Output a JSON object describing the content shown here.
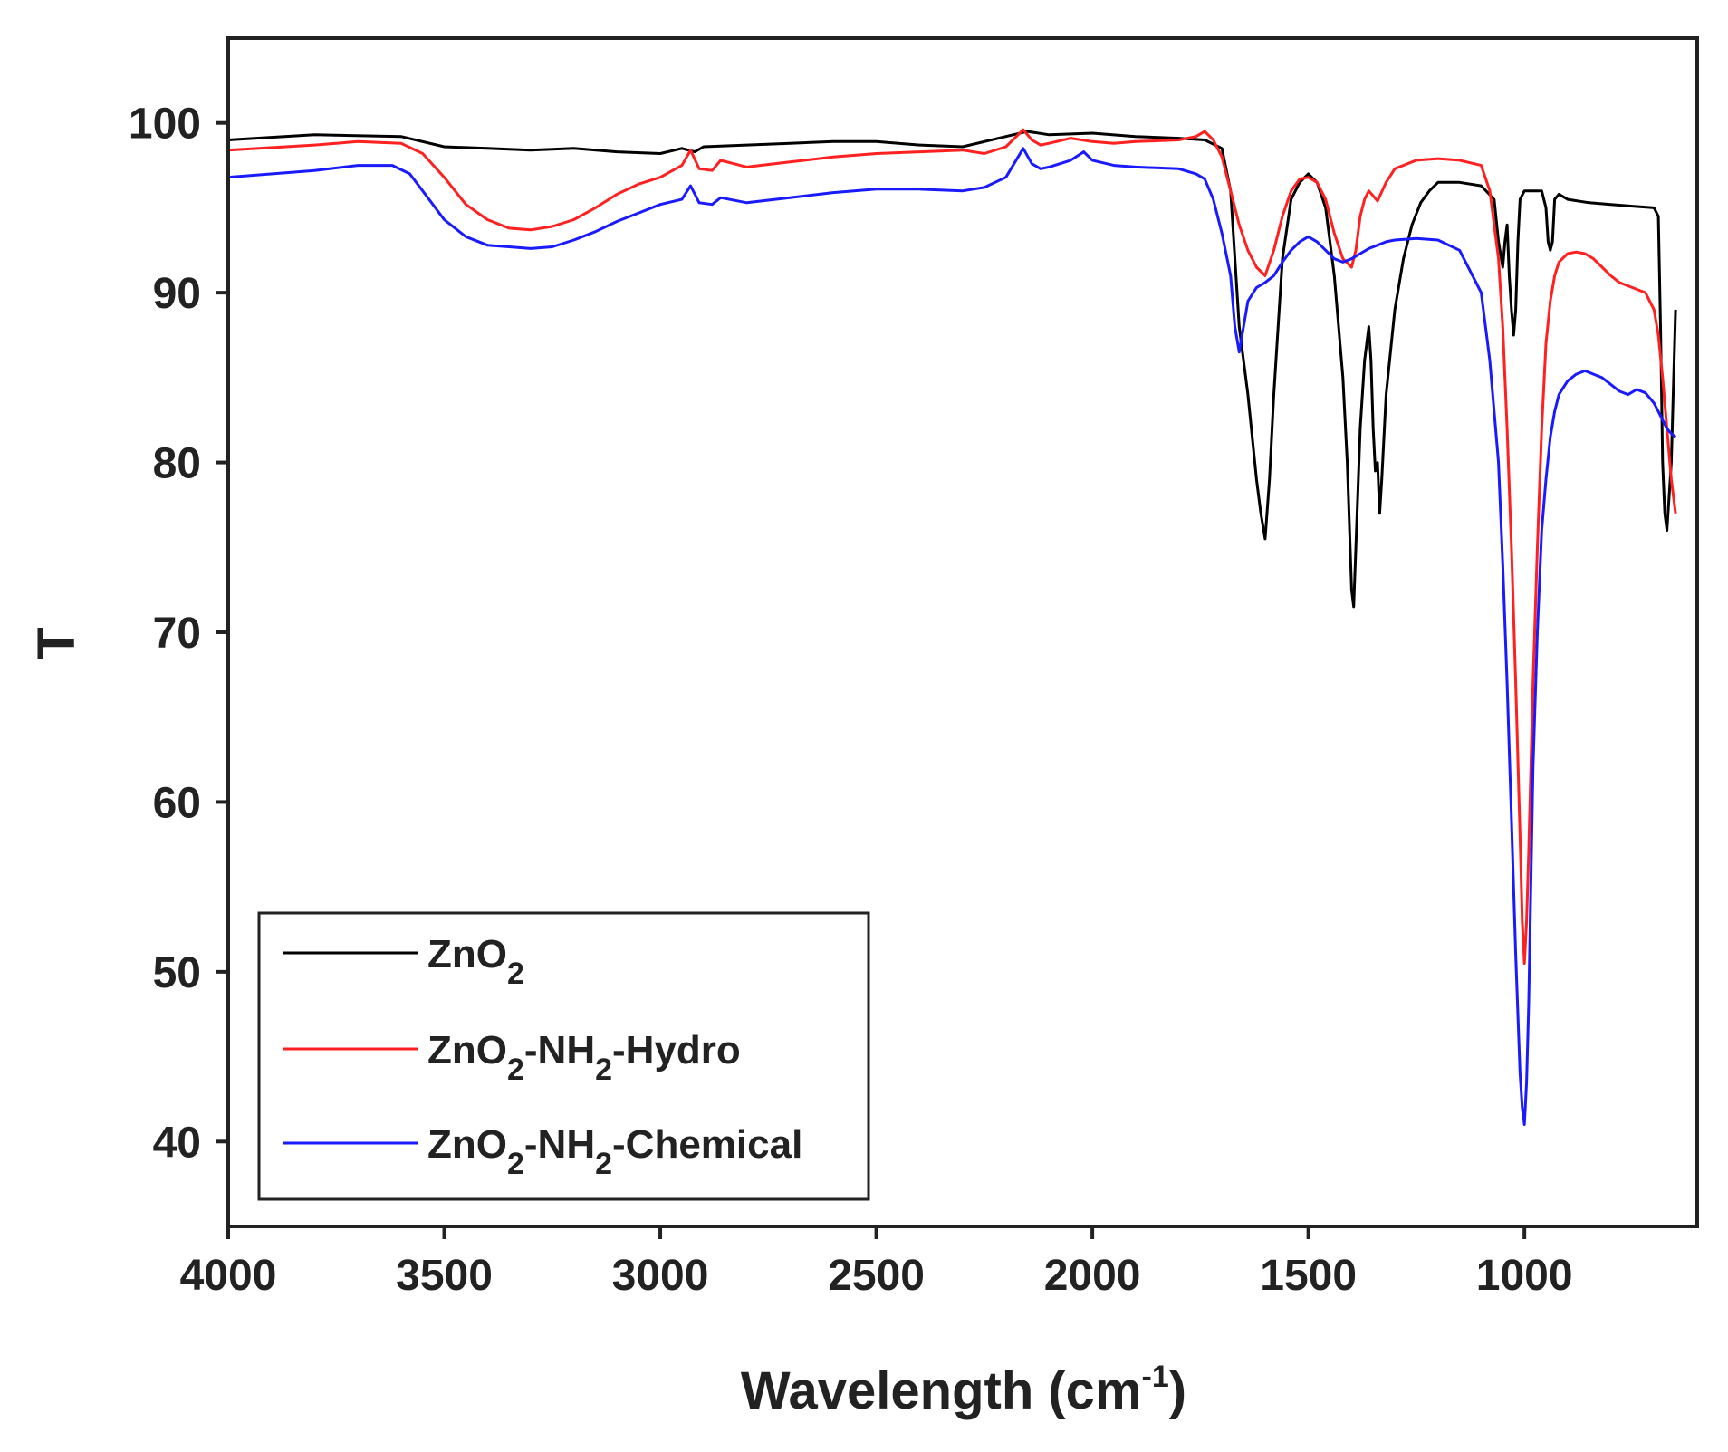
{
  "chart_data": {
    "type": "line",
    "title": "",
    "xlabel_main": "Wavelength (cm",
    "xlabel_sup": "-1",
    "xlabel_close": ")",
    "ylabel": "T",
    "xlim": [
      4000,
      600
    ],
    "ylim": [
      35,
      105
    ],
    "xticks": [
      4000,
      3500,
      3000,
      2500,
      2000,
      1500,
      1000
    ],
    "xtick_labels": [
      "4000",
      "3500",
      "3000",
      "2500",
      "2000",
      "1500",
      "1000"
    ],
    "yticks": [
      40,
      50,
      60,
      70,
      80,
      90,
      100
    ],
    "ytick_labels": [
      "40",
      "50",
      "60",
      "70",
      "80",
      "90",
      "100"
    ],
    "grid": false,
    "legend_position": "bottom-left",
    "series": [
      {
        "name": "ZnO2",
        "legend": {
          "base": "ZnO",
          "sub": "2",
          "tail": "",
          "sub2": "",
          "tail2": ""
        },
        "color": "#000000",
        "x": [
          4000,
          3800,
          3600,
          3500,
          3400,
          3300,
          3200,
          3100,
          3000,
          2950,
          2920,
          2900,
          2800,
          2700,
          2600,
          2500,
          2400,
          2300,
          2200,
          2150,
          2100,
          2000,
          1900,
          1800,
          1740,
          1700,
          1680,
          1660,
          1640,
          1620,
          1610,
          1600,
          1590,
          1580,
          1560,
          1540,
          1520,
          1500,
          1480,
          1460,
          1440,
          1420,
          1410,
          1400,
          1395,
          1390,
          1380,
          1370,
          1360,
          1355,
          1350,
          1345,
          1340,
          1335,
          1330,
          1320,
          1300,
          1280,
          1260,
          1240,
          1220,
          1200,
          1150,
          1100,
          1070,
          1060,
          1050,
          1045,
          1040,
          1035,
          1030,
          1025,
          1020,
          1015,
          1010,
          1000,
          980,
          960,
          950,
          945,
          940,
          935,
          930,
          920,
          900,
          850,
          800,
          750,
          700,
          690,
          685,
          680,
          675,
          670,
          660,
          650
        ],
        "y": [
          99,
          99.3,
          99.2,
          98.6,
          98.5,
          98.4,
          98.5,
          98.3,
          98.2,
          98.5,
          98.3,
          98.6,
          98.7,
          98.8,
          98.9,
          98.9,
          98.7,
          98.6,
          99.2,
          99.5,
          99.3,
          99.4,
          99.2,
          99.1,
          99.0,
          98.5,
          96,
          88,
          84,
          79,
          77,
          75.5,
          79,
          84,
          92,
          95.5,
          96.5,
          97,
          96.5,
          95,
          91,
          85,
          80,
          72.5,
          71.5,
          75,
          82,
          86,
          88,
          86,
          82,
          79.5,
          80,
          77,
          79,
          84,
          89,
          92,
          94,
          95.3,
          96,
          96.5,
          96.5,
          96.3,
          95.5,
          93,
          91.5,
          93,
          94,
          91,
          89,
          87.5,
          89,
          93,
          95.5,
          96,
          96,
          96,
          95,
          93,
          92.5,
          93,
          95.5,
          95.8,
          95.5,
          95.3,
          95.2,
          95.1,
          95,
          94.5,
          88,
          80,
          77,
          76,
          80,
          89
        ]
      },
      {
        "name": "ZnO2-NH2-Hydro",
        "legend": {
          "base": "ZnO",
          "sub": "2",
          "tail": "-NH",
          "sub2": "2",
          "tail2": "-Hydro"
        },
        "color": "#ff2020",
        "x": [
          4000,
          3800,
          3700,
          3600,
          3550,
          3500,
          3450,
          3400,
          3350,
          3300,
          3250,
          3200,
          3150,
          3100,
          3050,
          3000,
          2950,
          2930,
          2910,
          2880,
          2860,
          2800,
          2700,
          2600,
          2500,
          2400,
          2300,
          2250,
          2200,
          2160,
          2140,
          2120,
          2100,
          2050,
          2000,
          1950,
          1900,
          1800,
          1760,
          1740,
          1720,
          1700,
          1680,
          1660,
          1640,
          1620,
          1600,
          1580,
          1560,
          1540,
          1520,
          1500,
          1480,
          1460,
          1440,
          1420,
          1400,
          1390,
          1380,
          1370,
          1360,
          1350,
          1340,
          1320,
          1300,
          1250,
          1200,
          1150,
          1100,
          1080,
          1060,
          1050,
          1040,
          1030,
          1020,
          1010,
          1005,
          1000,
          995,
          990,
          985,
          980,
          970,
          960,
          950,
          940,
          930,
          920,
          900,
          880,
          860,
          840,
          820,
          800,
          780,
          760,
          740,
          720,
          700,
          690,
          680,
          670,
          660,
          650
        ],
        "y": [
          98.4,
          98.7,
          98.9,
          98.8,
          98.2,
          96.8,
          95.2,
          94.3,
          93.8,
          93.7,
          93.9,
          94.3,
          95,
          95.8,
          96.4,
          96.8,
          97.5,
          98.4,
          97.3,
          97.2,
          97.8,
          97.4,
          97.7,
          98,
          98.2,
          98.3,
          98.4,
          98.2,
          98.6,
          99.6,
          99,
          98.7,
          98.8,
          99.1,
          98.9,
          98.8,
          98.9,
          99,
          99.2,
          99.5,
          99,
          98,
          96,
          94,
          92.5,
          91.5,
          91,
          92.5,
          94.5,
          96,
          96.7,
          96.8,
          96.5,
          95.5,
          93.5,
          92,
          91.5,
          92.5,
          94.5,
          95.5,
          96,
          95.7,
          95.4,
          96.5,
          97.3,
          97.8,
          97.9,
          97.8,
          97.5,
          96,
          92,
          88,
          82,
          75,
          67,
          58,
          53,
          50.5,
          53,
          57,
          62,
          67,
          75,
          82,
          87,
          89.5,
          91,
          91.8,
          92.3,
          92.4,
          92.3,
          92,
          91.5,
          91,
          90.6,
          90.4,
          90.2,
          90,
          89,
          87.5,
          85,
          82,
          79,
          77
        ]
      },
      {
        "name": "ZnO2-NH2-Chemical",
        "legend": {
          "base": "ZnO",
          "sub": "2",
          "tail": "-NH",
          "sub2": "2",
          "tail2": "-Chemical"
        },
        "color": "#1a1aff",
        "x": [
          4000,
          3800,
          3700,
          3620,
          3580,
          3550,
          3500,
          3450,
          3400,
          3350,
          3300,
          3250,
          3200,
          3150,
          3100,
          3050,
          3000,
          2950,
          2930,
          2910,
          2880,
          2860,
          2800,
          2700,
          2600,
          2500,
          2400,
          2300,
          2250,
          2200,
          2160,
          2140,
          2120,
          2100,
          2050,
          2020,
          2000,
          1950,
          1900,
          1800,
          1760,
          1740,
          1720,
          1700,
          1680,
          1670,
          1660,
          1650,
          1640,
          1620,
          1600,
          1580,
          1560,
          1540,
          1520,
          1500,
          1480,
          1460,
          1440,
          1420,
          1400,
          1380,
          1360,
          1340,
          1320,
          1300,
          1250,
          1200,
          1150,
          1100,
          1080,
          1060,
          1050,
          1040,
          1030,
          1020,
          1010,
          1005,
          1000,
          995,
          990,
          985,
          980,
          970,
          960,
          950,
          940,
          930,
          920,
          900,
          880,
          860,
          840,
          820,
          800,
          780,
          760,
          740,
          720,
          700,
          690,
          680,
          670,
          660,
          650
        ],
        "y": [
          96.8,
          97.2,
          97.5,
          97.5,
          97,
          96,
          94.3,
          93.3,
          92.8,
          92.7,
          92.6,
          92.7,
          93.1,
          93.6,
          94.2,
          94.7,
          95.2,
          95.5,
          96.3,
          95.3,
          95.2,
          95.6,
          95.3,
          95.6,
          95.9,
          96.1,
          96.1,
          96,
          96.2,
          96.8,
          98.5,
          97.6,
          97.3,
          97.4,
          97.8,
          98.3,
          97.8,
          97.5,
          97.4,
          97.3,
          97,
          96.7,
          95.5,
          93.5,
          91,
          88,
          86.5,
          88,
          89.5,
          90.3,
          90.6,
          91,
          91.8,
          92.5,
          93,
          93.3,
          93,
          92.5,
          92,
          91.8,
          92,
          92.3,
          92.6,
          92.8,
          93,
          93.1,
          93.2,
          93.1,
          92.5,
          90,
          86,
          80,
          74,
          67,
          59,
          51,
          44,
          42,
          41,
          43.5,
          48,
          55,
          62,
          70,
          76,
          79,
          81.5,
          83,
          84,
          84.8,
          85.2,
          85.4,
          85.2,
          85,
          84.6,
          84.2,
          84,
          84.3,
          84.1,
          83.5,
          83,
          82.5,
          82,
          81.7,
          81.5
        ]
      }
    ]
  }
}
